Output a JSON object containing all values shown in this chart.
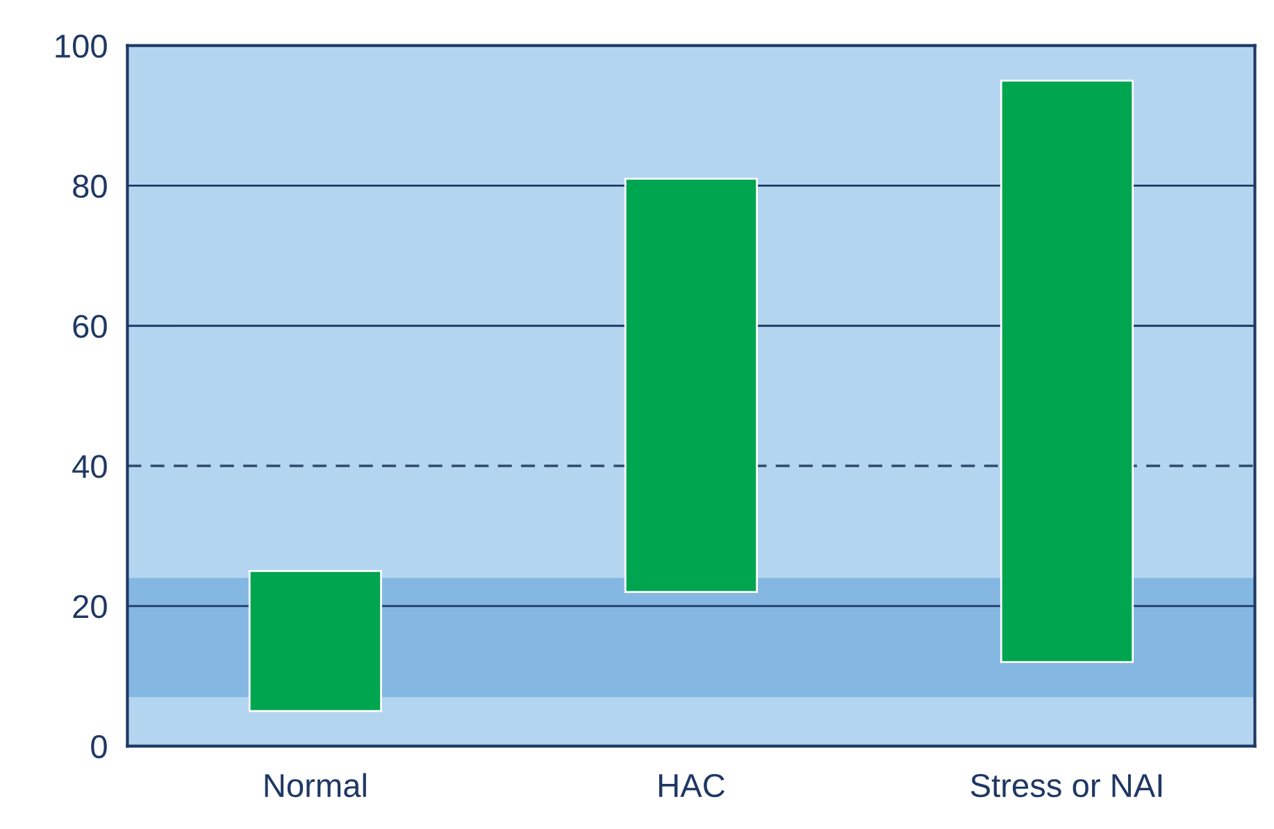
{
  "chart_data": {
    "type": "bar",
    "categories": [
      "Normal",
      "HAC",
      "Stress or NAI"
    ],
    "base": [
      5,
      22,
      12
    ],
    "values": [
      20,
      59,
      83
    ],
    "color": "#00a550",
    "ylim": [
      0,
      100
    ],
    "yticks": [
      0,
      20,
      40,
      60,
      80,
      100
    ],
    "grid": "y",
    "ref_lines": [
      {
        "axis": "y",
        "value": 40,
        "color": "#2f4a6e",
        "line_style": "dashed"
      }
    ],
    "bands": [
      {
        "axis": "y",
        "from": 7,
        "to": 24,
        "color": "#84b8e3"
      }
    ]
  }
}
